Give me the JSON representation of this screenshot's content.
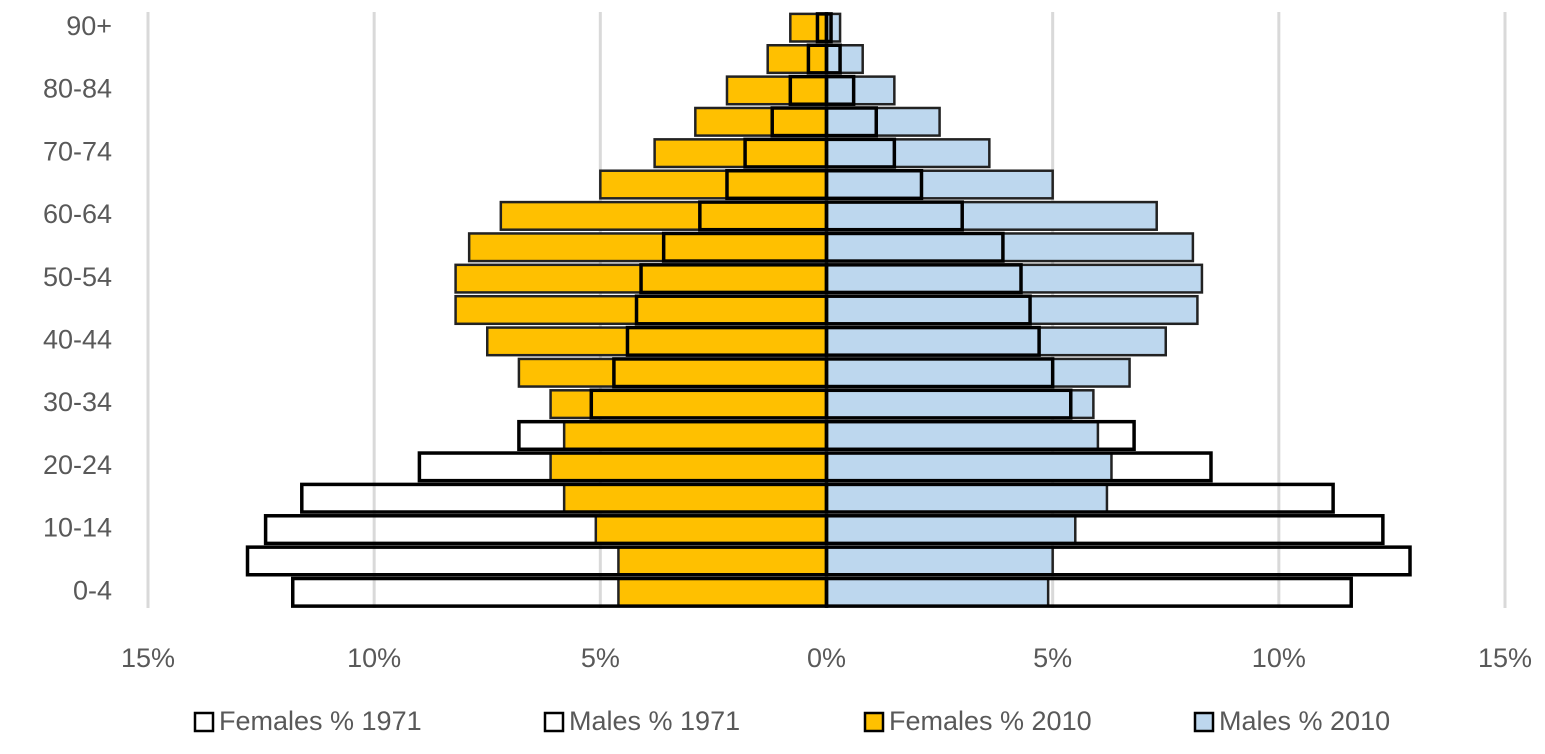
{
  "chart_data": {
    "type": "bar",
    "orientation": "horizontal",
    "overlap": true,
    "categories": [
      "0-4",
      null,
      "10-14",
      null,
      "20-24",
      null,
      "30-34",
      null,
      "40-44",
      null,
      "50-54",
      null,
      "60-64",
      null,
      "70-74",
      null,
      "80-84",
      null,
      "90+"
    ],
    "series": [
      {
        "name": "Females % 1971",
        "color": "#ffffff",
        "values": [
          -11.8,
          -12.8,
          -12.4,
          -11.6,
          -9.0,
          -6.8,
          -5.2,
          -4.7,
          -4.4,
          -4.2,
          -4.1,
          -3.6,
          -2.8,
          -2.2,
          -1.8,
          -1.2,
          -0.8,
          -0.4,
          -0.2
        ]
      },
      {
        "name": "Males % 1971",
        "color": "#ffffff",
        "values": [
          11.6,
          12.9,
          12.3,
          11.2,
          8.5,
          6.8,
          5.4,
          5.0,
          4.7,
          4.5,
          4.3,
          3.9,
          3.0,
          2.1,
          1.5,
          1.1,
          0.6,
          0.3,
          0.1
        ]
      },
      {
        "name": "Females % 2010",
        "color": "#ffc000",
        "values": [
          -4.6,
          -4.6,
          -5.1,
          -5.8,
          -6.1,
          -5.8,
          -6.1,
          -6.8,
          -7.5,
          -8.2,
          -8.2,
          -7.9,
          -7.2,
          -5.0,
          -3.8,
          -2.9,
          -2.2,
          -1.3,
          -0.8
        ]
      },
      {
        "name": "Males % 2010",
        "color": "#bdd7ee",
        "values": [
          4.9,
          5.0,
          5.5,
          6.2,
          6.3,
          6.0,
          5.9,
          6.7,
          7.5,
          8.2,
          8.3,
          8.1,
          7.3,
          5.0,
          3.6,
          2.5,
          1.5,
          0.8,
          0.3
        ]
      }
    ],
    "xlim": [
      -15,
      15
    ],
    "xticks": [
      {
        "value": -15,
        "label": "15%"
      },
      {
        "value": -10,
        "label": "10%"
      },
      {
        "value": -5,
        "label": "5%"
      },
      {
        "value": 0,
        "label": "0%"
      },
      {
        "value": 5,
        "label": "5%"
      },
      {
        "value": 10,
        "label": "10%"
      },
      {
        "value": 15,
        "label": "15%"
      }
    ],
    "grid": true,
    "legend": "bottom"
  }
}
